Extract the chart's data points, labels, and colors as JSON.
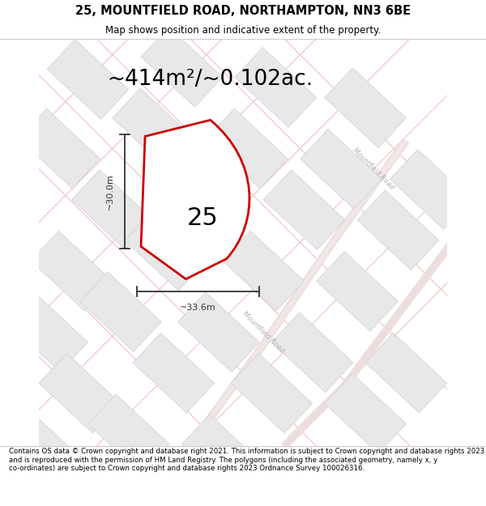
{
  "title": "25, MOUNTFIELD ROAD, NORTHAMPTON, NN3 6BE",
  "subtitle": "Map shows position and indicative extent of the property.",
  "area_text": "~414m²/~0.102ac.",
  "label_25": "25",
  "dim_width": "~33.6m",
  "dim_height": "~30.0m",
  "footer": "Contains OS data © Crown copyright and database right 2021. This information is subject to Crown copyright and database rights 2023 and is reproduced with the permission of HM Land Registry. The polygons (including the associated geometry, namely x, y co-ordinates) are subject to Crown copyright and database rights 2023 Ordnance Survey 100026316.",
  "bg_color": "#f7f7f7",
  "block_color": "#e8e8e8",
  "block_edge": "#d0d0d0",
  "road_line_color": "#f0c0c0",
  "road_label_color": "#b0b0b0",
  "plot_color": "#cc0000",
  "plot_fill": "white",
  "dim_color": "#333333",
  "title_fontsize": 10.5,
  "subtitle_fontsize": 8.5,
  "area_fontsize": 19,
  "footer_fontsize": 6.2,
  "label_fontsize": 22
}
